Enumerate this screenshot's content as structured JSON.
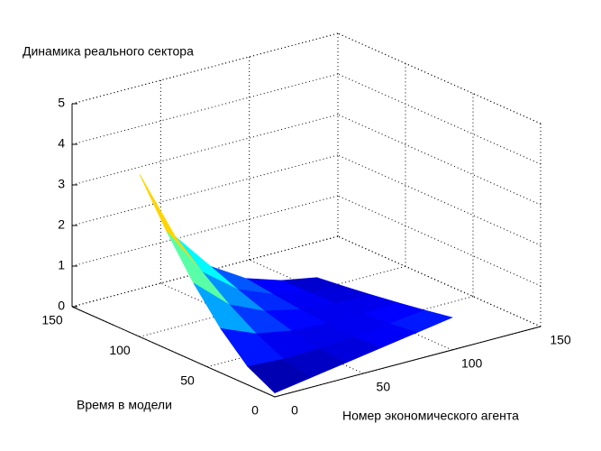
{
  "chart_data": {
    "type": "surface",
    "title": "Динамика реального сектора",
    "xlabel": "Номер экономического агента",
    "ylabel": "Время в модели",
    "x": [
      0,
      20,
      40,
      60,
      80,
      100
    ],
    "y": [
      0,
      20,
      40,
      60,
      80,
      100
    ],
    "z": [
      [
        0.1,
        0.24,
        0.38,
        0.52,
        0.66,
        0.8
      ],
      [
        0.45,
        0.4,
        0.43,
        0.49,
        0.58,
        0.68
      ],
      [
        1.09,
        0.73,
        0.57,
        0.52,
        0.53,
        0.57
      ],
      [
        1.91,
        1.15,
        0.76,
        0.57,
        0.49,
        0.47
      ],
      [
        2.89,
        1.66,
        1.0,
        0.65,
        0.47,
        0.38
      ],
      [
        4.0,
        2.24,
        1.27,
        0.74,
        0.46,
        0.3
      ]
    ],
    "xlim": [
      0,
      150
    ],
    "xticks": [
      0,
      50,
      100,
      150
    ],
    "ylim": [
      0,
      150
    ],
    "yticks": [
      0,
      50,
      100,
      150
    ],
    "zlim": [
      0,
      5
    ],
    "zticks": [
      0,
      1,
      2,
      3,
      4,
      5
    ],
    "grid": true,
    "colormap": "jet"
  }
}
